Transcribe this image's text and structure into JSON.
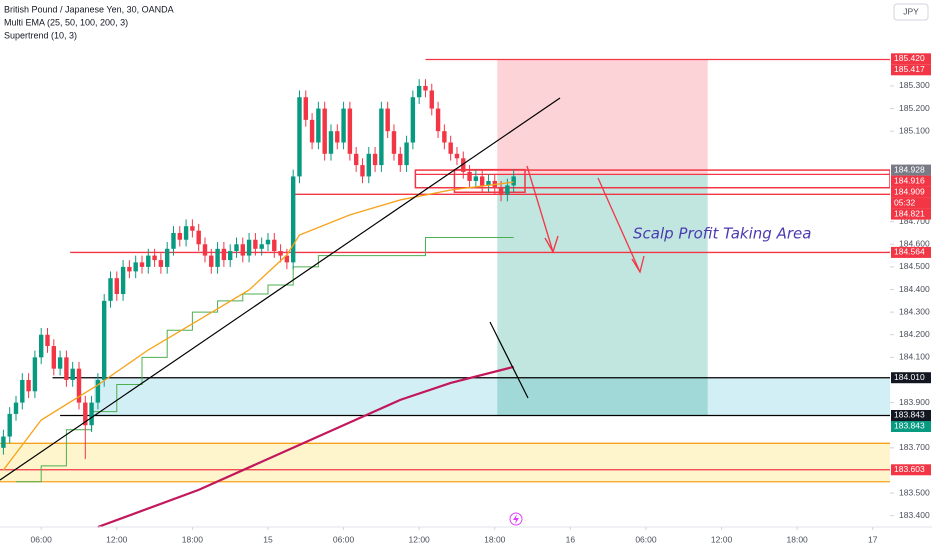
{
  "chart_data": {
    "type": "candlestick",
    "title": "British Pound / Japanese Yen, 30, OANDA",
    "indicators": [
      "Multi EMA (25, 50, 100, 200, 3)",
      "Supertrend (10, 3)"
    ],
    "currency": "JPY",
    "annotation": "Scalp Profit Taking Area",
    "countdown": "05:32",
    "up_color": "#089981",
    "down_color": "#f23645",
    "grid": false,
    "xlim": [
      2.73,
      73.37
    ],
    "xticks": [
      {
        "value": 6,
        "label": "06:00"
      },
      {
        "value": 12,
        "label": "12:00"
      },
      {
        "value": 18,
        "label": "18:00"
      },
      {
        "value": 24,
        "label": "15"
      },
      {
        "value": 30,
        "label": "06:00"
      },
      {
        "value": 36,
        "label": "12:00"
      },
      {
        "value": 42,
        "label": "18:00"
      },
      {
        "value": 48,
        "label": "16"
      },
      {
        "value": 54,
        "label": "06:00"
      },
      {
        "value": 60,
        "label": "12:00"
      },
      {
        "value": 66,
        "label": "18:00"
      },
      {
        "value": 72,
        "label": "17"
      }
    ],
    "ylim": [
      183.35,
      185.68
    ],
    "yticks": [
      {
        "value": 183.4,
        "label": "183.400"
      },
      {
        "value": 183.5,
        "label": "183.500"
      },
      {
        "value": 183.7,
        "label": "183.700"
      },
      {
        "value": 183.9,
        "label": "183.900"
      },
      {
        "value": 184.1,
        "label": "184.100"
      },
      {
        "value": 184.2,
        "label": "184.200"
      },
      {
        "value": 184.3,
        "label": "184.300"
      },
      {
        "value": 184.4,
        "label": "184.400"
      },
      {
        "value": 184.5,
        "label": "184.500"
      },
      {
        "value": 184.6,
        "label": "184.600"
      },
      {
        "value": 184.7,
        "label": "184.700"
      },
      {
        "value": 185.1,
        "label": "185.100"
      },
      {
        "value": 185.2,
        "label": "185.200"
      },
      {
        "value": 185.3,
        "label": "185.300"
      }
    ],
    "x": [
      3,
      3.5,
      4,
      4.5,
      5,
      5.5,
      6,
      6.5,
      7,
      7.5,
      8,
      8.5,
      9,
      9.5,
      10,
      10.5,
      11,
      11.5,
      12,
      12.5,
      13,
      13.5,
      14,
      14.5,
      15,
      15.5,
      16,
      16.5,
      17,
      17.5,
      18,
      18.5,
      19,
      19.5,
      20,
      20.5,
      21,
      21.5,
      22,
      22.5,
      23,
      23.5,
      24,
      24.5,
      25,
      25.5,
      26,
      26.5,
      27,
      27.5,
      28,
      28.5,
      29,
      29.5,
      30,
      30.5,
      31,
      31.5,
      32,
      32.5,
      33,
      33.5,
      34,
      34.5,
      35,
      35.5,
      36,
      36.5,
      37,
      37.5,
      38,
      38.5,
      39,
      39.5,
      40,
      40.5,
      41,
      41.5,
      42,
      42.5,
      43,
      43.5
    ],
    "open": [
      183.7,
      183.75,
      183.85,
      183.9,
      184.0,
      183.95,
      184.1,
      184.2,
      184.15,
      184.05,
      184.1,
      184.0,
      184.05,
      183.9,
      183.8,
      183.9,
      184.0,
      184.35,
      184.45,
      184.38,
      184.5,
      184.48,
      184.52,
      184.5,
      184.55,
      184.53,
      184.5,
      184.58,
      184.65,
      184.62,
      184.68,
      184.66,
      184.6,
      184.55,
      184.5,
      184.58,
      184.53,
      184.57,
      184.6,
      184.55,
      184.62,
      184.58,
      184.6,
      184.62,
      184.57,
      184.55,
      184.52,
      184.9,
      185.25,
      185.15,
      185.05,
      185.2,
      185.0,
      185.1,
      185.05,
      185.2,
      185.0,
      184.95,
      184.9,
      185.0,
      184.95,
      185.2,
      185.1,
      185.0,
      184.95,
      185.05,
      185.25,
      185.3,
      185.28,
      185.2,
      185.1,
      185.05,
      185.0,
      184.98,
      184.92,
      184.88,
      184.9,
      184.86,
      184.88,
      184.85,
      184.82,
      184.86
    ],
    "high": [
      183.78,
      183.88,
      183.93,
      184.03,
      184.03,
      184.13,
      184.23,
      184.23,
      184.18,
      184.13,
      184.13,
      184.08,
      184.08,
      183.93,
      183.93,
      184.03,
      184.38,
      184.48,
      184.48,
      184.53,
      184.53,
      184.55,
      184.55,
      184.58,
      184.58,
      184.56,
      184.61,
      184.68,
      184.68,
      184.71,
      184.71,
      184.69,
      184.63,
      184.58,
      184.61,
      184.61,
      184.6,
      184.63,
      184.63,
      184.65,
      184.65,
      184.63,
      184.65,
      184.65,
      184.6,
      184.58,
      184.93,
      185.28,
      185.28,
      185.18,
      185.23,
      185.23,
      185.13,
      185.13,
      185.23,
      185.23,
      185.03,
      184.98,
      185.03,
      185.03,
      185.23,
      185.23,
      185.13,
      185.03,
      185.08,
      185.28,
      185.33,
      185.33,
      185.31,
      185.23,
      185.13,
      185.08,
      185.03,
      185.01,
      184.95,
      184.93,
      184.93,
      184.91,
      184.91,
      184.88,
      184.89,
      184.93
    ],
    "low": [
      183.67,
      183.72,
      183.82,
      183.87,
      183.92,
      183.92,
      184.07,
      184.12,
      184.02,
      184.02,
      183.97,
      183.97,
      183.87,
      183.65,
      183.77,
      183.87,
      183.97,
      184.32,
      184.35,
      184.35,
      184.45,
      184.45,
      184.47,
      184.47,
      184.5,
      184.47,
      184.47,
      184.55,
      184.59,
      184.59,
      184.63,
      184.57,
      184.52,
      184.47,
      184.47,
      184.5,
      184.5,
      184.54,
      184.52,
      184.52,
      184.55,
      184.55,
      184.57,
      184.54,
      184.52,
      184.49,
      184.49,
      184.87,
      185.12,
      185.02,
      185.02,
      184.97,
      184.97,
      185.02,
      185.02,
      184.97,
      184.92,
      184.87,
      184.87,
      184.92,
      184.92,
      185.07,
      184.97,
      184.92,
      184.92,
      185.02,
      185.22,
      185.25,
      185.17,
      185.07,
      185.02,
      184.97,
      184.95,
      184.89,
      184.85,
      184.85,
      184.83,
      184.83,
      184.82,
      184.79,
      184.79,
      184.83
    ],
    "close": [
      183.75,
      183.85,
      183.9,
      184.0,
      183.95,
      184.1,
      184.2,
      184.15,
      184.05,
      184.1,
      184.0,
      184.05,
      183.9,
      183.8,
      183.9,
      184.0,
      184.35,
      184.45,
      184.38,
      184.5,
      184.48,
      184.52,
      184.5,
      184.55,
      184.53,
      184.5,
      184.58,
      184.65,
      184.62,
      184.68,
      184.66,
      184.6,
      184.55,
      184.5,
      184.58,
      184.53,
      184.57,
      184.6,
      184.55,
      184.62,
      184.58,
      184.6,
      184.62,
      184.57,
      184.55,
      184.52,
      184.9,
      185.25,
      185.15,
      185.05,
      185.2,
      185.0,
      185.1,
      185.05,
      185.2,
      185.0,
      184.95,
      184.9,
      185.0,
      184.95,
      185.2,
      185.1,
      185.0,
      184.95,
      185.05,
      185.25,
      185.3,
      185.28,
      185.2,
      185.1,
      185.05,
      185.0,
      184.98,
      184.92,
      184.88,
      184.9,
      184.86,
      184.88,
      184.85,
      184.82,
      184.86,
      184.9
    ],
    "ema": [
      {
        "color": "#f7a21b",
        "x": [
          3,
          6,
          10.5,
          14.5,
          18.5,
          22.5,
          25.5,
          26.5,
          30.5,
          34.5,
          38.5,
          43.5
        ],
        "values": [
          183.602,
          183.823,
          183.978,
          184.133,
          184.265,
          184.398,
          184.553,
          184.641,
          184.73,
          184.796,
          184.84,
          184.875
        ]
      },
      {
        "color": "#c2185b",
        "x": [
          10.5,
          18.5,
          26.5,
          34.5,
          38.5,
          43.5
        ],
        "values": [
          183.35,
          183.514,
          183.713,
          183.912,
          183.987,
          184.058
        ]
      }
    ],
    "supertrend": {
      "color": "#4caf50",
      "x": [
        4,
        6,
        8,
        10,
        12,
        14,
        16,
        18,
        20,
        22,
        24,
        26,
        28,
        30,
        32,
        34,
        36,
        36.5,
        43.5
      ],
      "values": [
        183.55,
        183.62,
        183.78,
        183.86,
        183.98,
        184.1,
        184.22,
        184.3,
        184.35,
        184.38,
        184.42,
        184.5,
        184.55,
        184.55,
        184.55,
        184.55,
        184.55,
        184.63,
        184.63
      ]
    },
    "zones": [
      {
        "from": 183.55,
        "to": 183.72,
        "start": 2.73,
        "color": "#fff5cc"
      },
      {
        "from": 183.843,
        "to": 184.01,
        "start": 10.2,
        "color": "#d3eff6"
      }
    ],
    "position": {
      "start": 42.2,
      "end": 58.9,
      "stop": 185.417,
      "entry": 184.909,
      "target": 183.843,
      "loss_color": "rgba(242,54,69,0.22)",
      "profit_color": "rgba(8,153,129,0.25)"
    },
    "boxes": [
      {
        "start": 35.7,
        "bottom": 184.85,
        "top": 184.928,
        "color": "#f23645"
      },
      {
        "start": 38.8,
        "end": 44.4,
        "bottom": 184.83,
        "top": 184.93,
        "color": "#f23645"
      }
    ],
    "levels": [
      {
        "value": 185.417,
        "start": 36.5,
        "color": "#f23645"
      },
      {
        "value": 184.909,
        "start": 35.7,
        "color": "#f23645"
      },
      {
        "value": 184.821,
        "start": 26,
        "color": "#f23645"
      },
      {
        "value": 184.564,
        "start": 8.3,
        "color": "#f23645"
      },
      {
        "value": 184.01,
        "start": 6.9,
        "color": "#000000"
      },
      {
        "value": 183.843,
        "start": 7.5,
        "color": "#000000"
      },
      {
        "value": 183.72,
        "start": 2.73,
        "color": "#f7a21b"
      },
      {
        "value": 183.603,
        "start": 2.73,
        "color": "#f23645"
      },
      {
        "value": 183.55,
        "start": 2.73,
        "color": "#f7a21b"
      }
    ],
    "price_labels": [
      {
        "value": 185.42,
        "label": "185.420",
        "color": "#f23645"
      },
      {
        "value": 185.417,
        "label": "185.417",
        "color": "#f23645"
      },
      {
        "value": 184.928,
        "label": "184.928",
        "color": "#787b86"
      },
      {
        "value": 184.916,
        "label": "184.916",
        "color": "#f23645"
      },
      {
        "value": 184.909,
        "label": "184.909",
        "color": "#f23645"
      },
      {
        "value": 184.821,
        "label": "184.821",
        "color": "#f23645"
      },
      {
        "value": 184.564,
        "label": "184.564",
        "color": "#f23645"
      },
      {
        "value": 184.01,
        "label": "184.010",
        "color": "#131722"
      },
      {
        "value": 183.843,
        "label": "183.843",
        "color": "#131722"
      },
      {
        "value": 183.843,
        "label": "183.843",
        "color": "#089981"
      },
      {
        "value": 183.603,
        "label": "183.603",
        "color": "#f23645"
      }
    ]
  }
}
